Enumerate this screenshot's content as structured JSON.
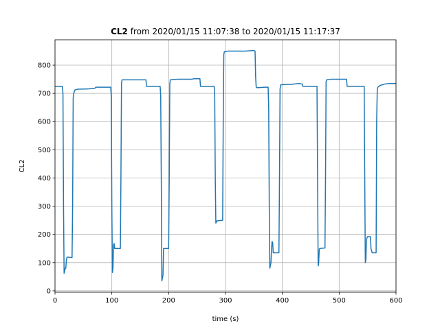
{
  "chart_data": {
    "type": "line",
    "title": "from 2020/01/15 11:07:38 to 2020/01/15 11:17:37",
    "title_bold": "CL2",
    "xlabel": "time (s)",
    "ylabel": "CL2",
    "xlim": [
      0,
      600
    ],
    "ylim": [
      -5,
      890
    ],
    "grid": true,
    "x_ticks": [
      0,
      100,
      200,
      300,
      400,
      500,
      600
    ],
    "y_ticks": [
      0,
      100,
      200,
      300,
      400,
      500,
      600,
      700,
      800
    ],
    "colors": {
      "series": "#1f77b4",
      "grid": "#b0b0b0"
    },
    "series": [
      {
        "points": [
          [
            0,
            725
          ],
          [
            13,
            725
          ],
          [
            14,
            700
          ],
          [
            15,
            300
          ],
          [
            16,
            62
          ],
          [
            17,
            70
          ],
          [
            18,
            80
          ],
          [
            19,
            80
          ],
          [
            20,
            108
          ],
          [
            21,
            118
          ],
          [
            23,
            120
          ],
          [
            25,
            118
          ],
          [
            30,
            118
          ],
          [
            31,
            300
          ],
          [
            32,
            685
          ],
          [
            33,
            700
          ],
          [
            35,
            712
          ],
          [
            40,
            715
          ],
          [
            60,
            716
          ],
          [
            70,
            718
          ],
          [
            72,
            722
          ],
          [
            90,
            722
          ],
          [
            98,
            722
          ],
          [
            99,
            690
          ],
          [
            100,
            300
          ],
          [
            101,
            65
          ],
          [
            102,
            80
          ],
          [
            103,
            160
          ],
          [
            104,
            168
          ],
          [
            105,
            150
          ],
          [
            110,
            150
          ],
          [
            115,
            150
          ],
          [
            116,
            400
          ],
          [
            117,
            735
          ],
          [
            118,
            748
          ],
          [
            125,
            748
          ],
          [
            135,
            748
          ],
          [
            145,
            748
          ],
          [
            160,
            748
          ],
          [
            161,
            725
          ],
          [
            170,
            725
          ],
          [
            185,
            725
          ],
          [
            186,
            690
          ],
          [
            187,
            400
          ],
          [
            188,
            35
          ],
          [
            189,
            45
          ],
          [
            190,
            55
          ],
          [
            191,
            150
          ],
          [
            200,
            150
          ],
          [
            201,
            400
          ],
          [
            202,
            735
          ],
          [
            203,
            748
          ],
          [
            215,
            750
          ],
          [
            230,
            750
          ],
          [
            240,
            750
          ],
          [
            245,
            752
          ],
          [
            255,
            752
          ],
          [
            256,
            725
          ],
          [
            265,
            725
          ],
          [
            280,
            725
          ],
          [
            281,
            700
          ],
          [
            282,
            400
          ],
          [
            283,
            240
          ],
          [
            285,
            248
          ],
          [
            295,
            250
          ],
          [
            296,
            600
          ],
          [
            297,
            838
          ],
          [
            298,
            848
          ],
          [
            305,
            850
          ],
          [
            320,
            850
          ],
          [
            335,
            850
          ],
          [
            350,
            852
          ],
          [
            352,
            850
          ],
          [
            353,
            760
          ],
          [
            354,
            722
          ],
          [
            356,
            720
          ],
          [
            370,
            722
          ],
          [
            375,
            722
          ],
          [
            376,
            650
          ],
          [
            377,
            300
          ],
          [
            378,
            80
          ],
          [
            379,
            90
          ],
          [
            380,
            100
          ],
          [
            381,
            150
          ],
          [
            382,
            175
          ],
          [
            383,
            170
          ],
          [
            384,
            135
          ],
          [
            390,
            135
          ],
          [
            394,
            135
          ],
          [
            395,
            400
          ],
          [
            396,
            715
          ],
          [
            397,
            730
          ],
          [
            405,
            732
          ],
          [
            415,
            732
          ],
          [
            420,
            733
          ],
          [
            430,
            735
          ],
          [
            435,
            733
          ],
          [
            436,
            725
          ],
          [
            450,
            725
          ],
          [
            461,
            725
          ],
          [
            462,
            400
          ],
          [
            463,
            88
          ],
          [
            464,
            100
          ],
          [
            465,
            148
          ],
          [
            466,
            150
          ],
          [
            475,
            152
          ],
          [
            476,
            400
          ],
          [
            477,
            742
          ],
          [
            478,
            748
          ],
          [
            485,
            750
          ],
          [
            500,
            750
          ],
          [
            513,
            750
          ],
          [
            514,
            725
          ],
          [
            530,
            725
          ],
          [
            544,
            725
          ],
          [
            545,
            400
          ],
          [
            546,
            100
          ],
          [
            547,
            110
          ],
          [
            548,
            180
          ],
          [
            549,
            188
          ],
          [
            550,
            192
          ],
          [
            555,
            192
          ],
          [
            556,
            150
          ],
          [
            558,
            135
          ],
          [
            565,
            135
          ],
          [
            566,
            600
          ],
          [
            567,
            712
          ],
          [
            568,
            722
          ],
          [
            572,
            728
          ],
          [
            580,
            733
          ],
          [
            590,
            735
          ],
          [
            600,
            735
          ]
        ]
      }
    ]
  }
}
